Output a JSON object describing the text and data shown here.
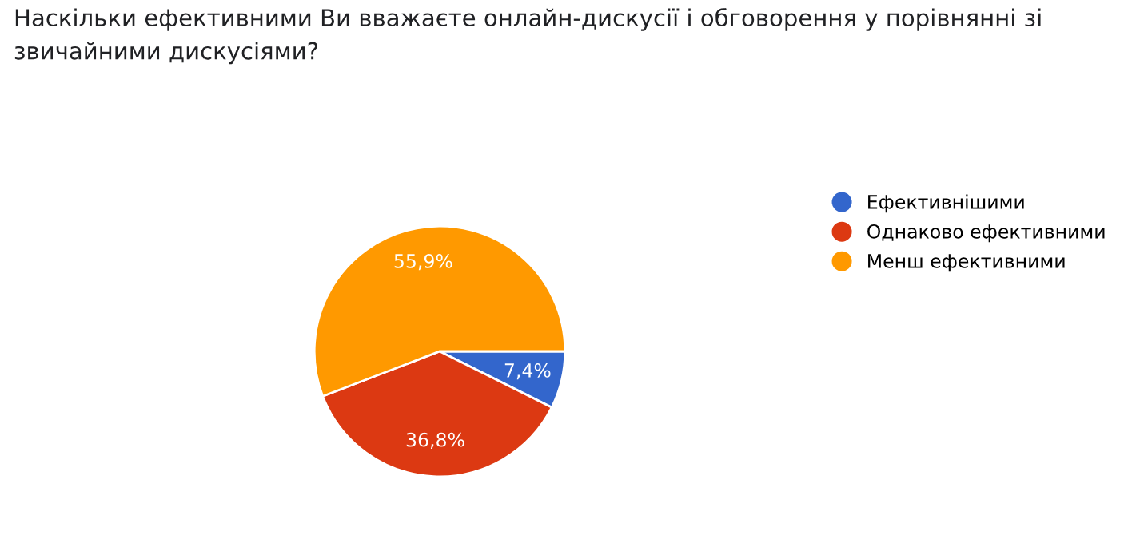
{
  "chart_data": {
    "type": "pie",
    "title": "Наскільки ефективними Ви вважаєте онлайн-дискусії і обговорення у порівнянні зі звичайними дискусіями?",
    "categories": [
      "Ефективнішими",
      "Однаково ефективними",
      "Менш ефективними"
    ],
    "values": [
      7.4,
      36.8,
      55.9
    ],
    "colors": [
      "#3366cc",
      "#dc3912",
      "#ff9900"
    ],
    "value_labels": [
      "7,4%",
      "36,8%",
      "55,9%"
    ],
    "legend": "right"
  }
}
